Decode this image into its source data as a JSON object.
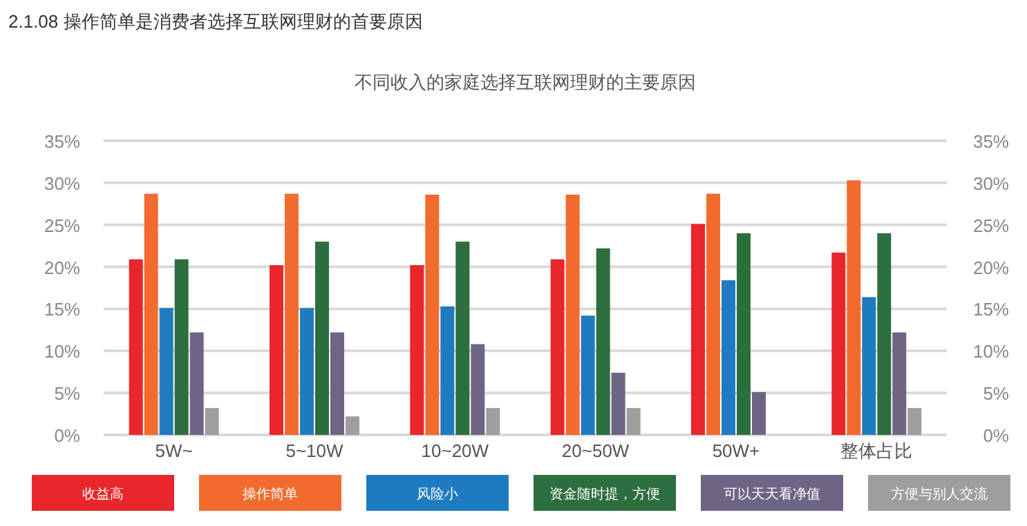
{
  "chart_data": {
    "type": "bar",
    "title": "2.1.08 操作简单是消费者选择互联网理财的首要原因",
    "subtitle": "不同收入的家庭选择互联网理财的主要原因",
    "categories": [
      "5W~",
      "5~10W",
      "10~20W",
      "20~50W",
      "50W+",
      "整体占比"
    ],
    "series": [
      {
        "name": "收益高",
        "color": "#e8262b",
        "values": [
          20.9,
          20.2,
          20.2,
          20.9,
          25.1,
          21.7
        ]
      },
      {
        "name": "操作简单",
        "color": "#f26b2e",
        "values": [
          28.7,
          28.7,
          28.6,
          28.6,
          28.7,
          30.3
        ]
      },
      {
        "name": "风险小",
        "color": "#1f7bbf",
        "values": [
          15.1,
          15.1,
          15.3,
          14.2,
          18.4,
          16.4
        ]
      },
      {
        "name": "资金随时提，方便",
        "color": "#2d6e3e",
        "values": [
          20.9,
          23.0,
          23.0,
          22.2,
          24.0,
          24.0
        ]
      },
      {
        "name": "可以天天看净值",
        "color": "#6e6585",
        "values": [
          12.2,
          12.2,
          10.8,
          7.4,
          5.1,
          12.2
        ]
      },
      {
        "name": "方便与别人交流",
        "color": "#9e9e9e",
        "values": [
          3.2,
          2.2,
          3.2,
          3.2,
          null,
          3.2
        ]
      }
    ],
    "ylim": [
      0,
      35
    ],
    "yticks": [
      {
        "value": 0,
        "label": "0%"
      },
      {
        "value": 5,
        "label": "5%"
      },
      {
        "value": 10,
        "label": "10%"
      },
      {
        "value": 15,
        "label": "15%"
      },
      {
        "value": 20,
        "label": "20%"
      },
      {
        "value": 25,
        "label": "25%"
      },
      {
        "value": 30,
        "label": "30%"
      },
      {
        "value": 35,
        "label": "35%"
      }
    ],
    "y2lim": [
      0,
      35
    ],
    "y2ticks": [
      {
        "value": 0,
        "label": "0%"
      },
      {
        "value": 5,
        "label": "5%"
      },
      {
        "value": 10,
        "label": "10%"
      },
      {
        "value": 15,
        "label": "15%"
      },
      {
        "value": 20,
        "label": "20%"
      },
      {
        "value": 25,
        "label": "25%"
      },
      {
        "value": 30,
        "label": "30%"
      },
      {
        "value": 35,
        "label": "35%"
      }
    ],
    "grid": "y",
    "legend": "bottom"
  }
}
